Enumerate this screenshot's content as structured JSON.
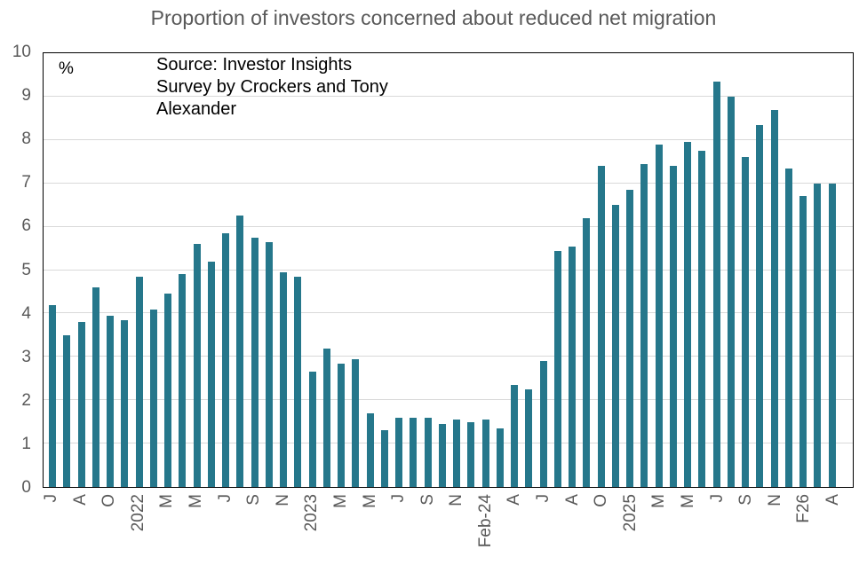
{
  "chart_data": {
    "type": "bar",
    "title": "Proportion of investors concerned about reduced net migration",
    "unit_label": "%",
    "source_lines": [
      "Source: Investor Insights",
      "Survey by Crockers and Tony",
      "Alexander"
    ],
    "ylim": [
      0,
      10
    ],
    "yticks": [
      0,
      1,
      2,
      3,
      4,
      5,
      6,
      7,
      8,
      9,
      10
    ],
    "grid": true,
    "legend": "none",
    "bar_color": "#25778B",
    "axis_text_color": "#595959",
    "grid_color": "#D9D9D9",
    "categories": [
      "J",
      "",
      "A",
      "",
      "O",
      "",
      "2022",
      "",
      "M",
      "",
      "M",
      "",
      "J",
      "",
      "S",
      "",
      "N",
      "",
      "2023",
      "",
      "M",
      "",
      "M",
      "",
      "J",
      "",
      "S",
      "",
      "N",
      "",
      "Feb-24",
      "",
      "A",
      "",
      "J",
      "",
      "A",
      "",
      "O",
      "",
      "2025",
      "",
      "M",
      "",
      "M",
      "",
      "J",
      "",
      "S",
      "",
      "N",
      "",
      "F26",
      "",
      "A"
    ],
    "values": [
      4.2,
      3.5,
      3.8,
      4.6,
      3.95,
      3.85,
      4.85,
      4.1,
      4.45,
      4.9,
      5.6,
      5.2,
      5.85,
      6.25,
      5.75,
      5.65,
      4.95,
      4.85,
      2.65,
      3.2,
      2.85,
      2.95,
      1.7,
      1.3,
      1.6,
      1.6,
      1.6,
      1.45,
      1.55,
      1.5,
      1.55,
      1.35,
      2.35,
      2.25,
      2.9,
      5.45,
      5.55,
      6.2,
      7.4,
      6.5,
      6.85,
      7.45,
      7.9,
      7.4,
      7.95,
      7.75,
      9.35,
      9.0,
      7.6,
      8.35,
      8.7,
      7.35,
      6.7,
      7.0,
      7.0
    ]
  }
}
